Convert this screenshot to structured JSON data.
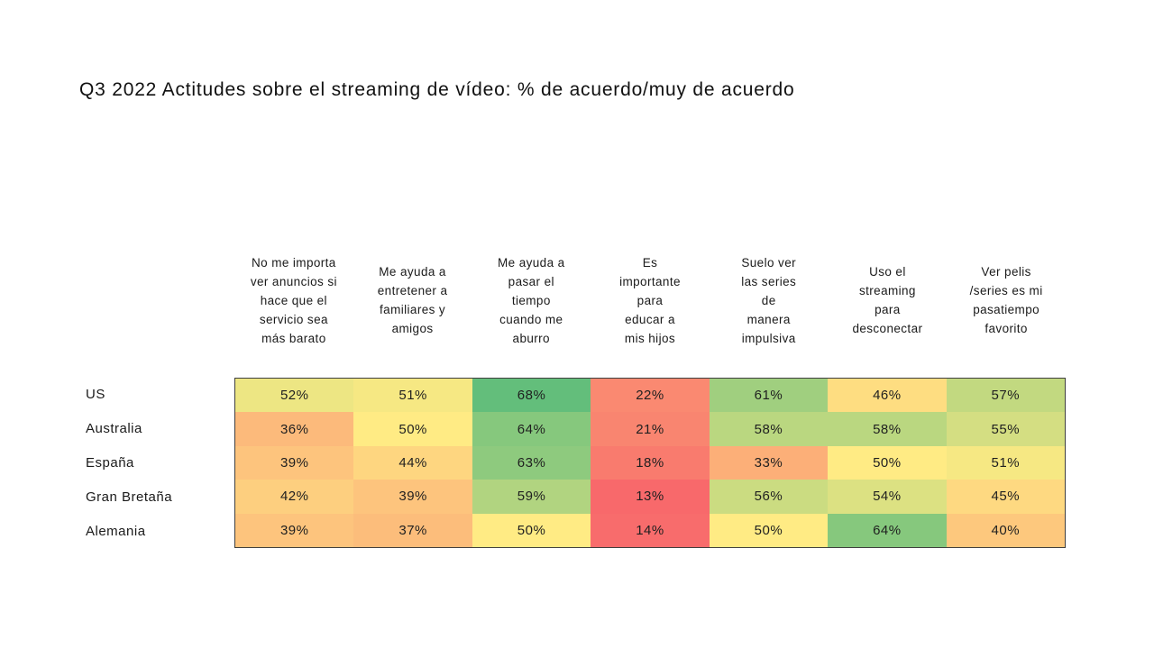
{
  "page": {
    "background": "#ffffff"
  },
  "chart_data": {
    "type": "heatmap",
    "title": "Q3 2022 Actitudes sobre el streaming de vídeo: % de acuerdo/muy de acuerdo",
    "value_format": "percent_agree",
    "legend": "none",
    "grid": "off",
    "color_scale": {
      "min_value": 13,
      "mid_value": 50,
      "max_value": 68,
      "min_color": "#F8696B",
      "mid_color": "#FFEB84",
      "max_color": "#63BE7B"
    },
    "columns": [
      [
        "No me importa",
        "ver anuncios si",
        "hace que el",
        "servicio sea",
        "más barato"
      ],
      [
        "Me ayuda a",
        "entretener a",
        "familiares y",
        "amigos"
      ],
      [
        "Me ayuda a",
        "pasar el",
        "tiempo",
        "cuando me",
        "aburro"
      ],
      [
        "Es",
        "importante",
        "para",
        "educar a",
        "mis hijos"
      ],
      [
        "Suelo ver",
        "las series",
        "de",
        "manera",
        "impulsiva"
      ],
      [
        "Uso el",
        "streaming",
        "para",
        "desconectar"
      ],
      [
        "Ver pelis",
        "/series es mi",
        "pasatiempo",
        "favorito"
      ]
    ],
    "rows": [
      {
        "label": "US",
        "values": [
          52,
          51,
          68,
          22,
          61,
          46,
          57
        ],
        "labels": [
          "52%",
          "51%",
          "68%",
          "22%",
          "61%",
          "46%",
          "57%"
        ],
        "colors": [
          "#EDE683",
          "#F6E883",
          "#63BE7B",
          "#FA8971",
          "#A0CF7F",
          "#FEDD81",
          "#C2D980"
        ]
      },
      {
        "label": "Australia",
        "values": [
          36,
          50,
          64,
          21,
          58,
          58,
          55
        ],
        "labels": [
          "36%",
          "50%",
          "64%",
          "21%",
          "58%",
          "58%",
          "55%"
        ],
        "colors": [
          "#FCBA7B",
          "#FFEB84",
          "#86C87D",
          "#F98570",
          "#BAD780",
          "#BAD780",
          "#D4DE82"
        ]
      },
      {
        "label": "España",
        "values": [
          39,
          44,
          63,
          18,
          33,
          50,
          51
        ],
        "labels": [
          "39%",
          "44%",
          "63%",
          "18%",
          "33%",
          "50%",
          "51%"
        ],
        "colors": [
          "#FDC47D",
          "#FED680",
          "#8ECA7E",
          "#F97B6E",
          "#FCAF78",
          "#FFEB84",
          "#F6E883"
        ]
      },
      {
        "label": "Gran Bretaña",
        "values": [
          42,
          39,
          59,
          13,
          56,
          54,
          45
        ],
        "labels": [
          "42%",
          "39%",
          "59%",
          "13%",
          "56%",
          "54%",
          "45%"
        ],
        "colors": [
          "#FDCF7F",
          "#FDC47D",
          "#B1D480",
          "#F8696B",
          "#CBDC81",
          "#DCE182",
          "#FED981"
        ]
      },
      {
        "label": "Alemania",
        "values": [
          39,
          37,
          50,
          14,
          50,
          64,
          40
        ],
        "labels": [
          "39%",
          "37%",
          "50%",
          "14%",
          "50%",
          "64%",
          "40%"
        ],
        "colors": [
          "#FDC47D",
          "#FCBD7B",
          "#FFEB84",
          "#F86C6C",
          "#FFEB84",
          "#86C87D",
          "#FDC87D"
        ]
      }
    ]
  }
}
